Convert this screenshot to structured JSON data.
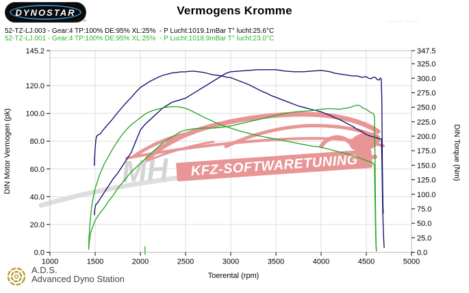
{
  "header": {
    "logo_text": "DYNOSTAR",
    "logo_subtext": "..:: m",
    "title": "Vermogens Kromme",
    "fine_print": "······· ·····",
    "runs": [
      {
        "label": "52-TZ-LJ.003 - Gear:4 TP:100% DE:95% XL:25%  - P Lucht:1019.1mBar T° lucht:25.6°C",
        "color": "#000000"
      },
      {
        "label": "52-TZ-LJ.001 - Gear:4 TP:100% DE:95% XL:25%  - P Lucht:1018.9mBar T° lucht:23.0°C",
        "color": "#2db32d"
      }
    ]
  },
  "watermark": {
    "mh_text": "MH",
    "banner_text": "KFZ-SOFTWARETUNING",
    "car_color": "#e89595",
    "gray_color": "#d6d6d6"
  },
  "footer": {
    "logo_title": "A.D.S.",
    "logo_subtitle": "Advanced Dyno Station"
  },
  "chart_data": {
    "type": "line",
    "title": "Vermogens Kromme",
    "xlabel": "Toerental (rpm)",
    "xlim": [
      1000,
      5000
    ],
    "x_ticks": [
      1000,
      1500,
      2000,
      2500,
      3000,
      3500,
      4000,
      4500,
      5000
    ],
    "grid": true,
    "y_left": {
      "label": "DIN Motor Vermogen (pk)",
      "max": 145.2,
      "ticks": [
        0,
        20,
        40,
        60,
        80,
        100,
        120,
        145.2
      ],
      "gridlines": [
        20,
        40,
        60,
        80,
        100,
        120,
        140
      ]
    },
    "y_right": {
      "label": "DIN Torque (Nm)",
      "max": 347.5,
      "ticks": [
        0,
        25,
        50,
        75,
        100,
        125,
        150,
        175,
        200,
        225,
        250,
        275,
        300,
        325,
        347.5
      ]
    },
    "series": [
      {
        "name": "power-52-TZ-LJ.003",
        "run": "52-TZ-LJ.003",
        "axis": "left",
        "unit": "pk",
        "color": "#14146e",
        "points": [
          [
            1490,
            27
          ],
          [
            1496,
            31
          ],
          [
            1505,
            34
          ],
          [
            1530,
            36
          ],
          [
            1560,
            39
          ],
          [
            1600,
            43
          ],
          [
            1650,
            48
          ],
          [
            1700,
            53
          ],
          [
            1750,
            57
          ],
          [
            1800,
            62
          ],
          [
            1850,
            67
          ],
          [
            1900,
            72
          ],
          [
            1950,
            80
          ],
          [
            2000,
            88
          ],
          [
            2050,
            92
          ],
          [
            2100,
            95
          ],
          [
            2150,
            98
          ],
          [
            2200,
            101
          ],
          [
            2250,
            104
          ],
          [
            2300,
            106
          ],
          [
            2350,
            108
          ],
          [
            2400,
            109
          ],
          [
            2450,
            110
          ],
          [
            2500,
            111
          ],
          [
            2550,
            113
          ],
          [
            2600,
            115
          ],
          [
            2650,
            117
          ],
          [
            2700,
            119
          ],
          [
            2750,
            121
          ],
          [
            2800,
            123
          ],
          [
            2850,
            125
          ],
          [
            2900,
            127
          ],
          [
            2950,
            129
          ],
          [
            3000,
            130
          ],
          [
            3100,
            130.5
          ],
          [
            3200,
            131
          ],
          [
            3300,
            131.5
          ],
          [
            3400,
            131.5
          ],
          [
            3500,
            131.5
          ],
          [
            3600,
            130.5
          ],
          [
            3700,
            130
          ],
          [
            3800,
            130
          ],
          [
            3900,
            130.5
          ],
          [
            4000,
            131
          ],
          [
            4100,
            130
          ],
          [
            4150,
            129
          ],
          [
            4200,
            128.5
          ],
          [
            4300,
            127.5
          ],
          [
            4350,
            127
          ],
          [
            4400,
            127
          ],
          [
            4450,
            126
          ],
          [
            4500,
            126.5
          ],
          [
            4520,
            125.5
          ],
          [
            4550,
            125
          ],
          [
            4580,
            126
          ],
          [
            4600,
            126
          ],
          [
            4620,
            124.5
          ],
          [
            4640,
            124
          ],
          [
            4655,
            125.5
          ],
          [
            4665,
            125
          ],
          [
            4672,
            110
          ],
          [
            4678,
            62
          ],
          [
            4684,
            34
          ],
          [
            4688,
            28
          ]
        ]
      },
      {
        "name": "torque-52-TZ-LJ.003",
        "run": "52-TZ-LJ.003",
        "axis": "right",
        "unit": "Nm",
        "color": "#14146e",
        "points": [
          [
            1490,
            150
          ],
          [
            1494,
            163
          ],
          [
            1500,
            180
          ],
          [
            1508,
            194
          ],
          [
            1516,
            200
          ],
          [
            1530,
            202
          ],
          [
            1555,
            204
          ],
          [
            1600,
            213
          ],
          [
            1650,
            222
          ],
          [
            1700,
            231
          ],
          [
            1750,
            241
          ],
          [
            1800,
            250
          ],
          [
            1850,
            259
          ],
          [
            1900,
            267
          ],
          [
            1950,
            276
          ],
          [
            2000,
            284
          ],
          [
            2050,
            289
          ],
          [
            2100,
            294
          ],
          [
            2150,
            298
          ],
          [
            2200,
            302
          ],
          [
            2250,
            305
          ],
          [
            2300,
            307
          ],
          [
            2350,
            309
          ],
          [
            2400,
            310
          ],
          [
            2450,
            311
          ],
          [
            2500,
            311
          ],
          [
            2550,
            312
          ],
          [
            2600,
            312
          ],
          [
            2650,
            311
          ],
          [
            2700,
            310
          ],
          [
            2750,
            308
          ],
          [
            2800,
            306
          ],
          [
            2850,
            305
          ],
          [
            2900,
            304
          ],
          [
            2950,
            302
          ],
          [
            3000,
            301
          ],
          [
            3050,
            298
          ],
          [
            3100,
            295
          ],
          [
            3150,
            292
          ],
          [
            3200,
            289
          ],
          [
            3250,
            285
          ],
          [
            3300,
            281
          ],
          [
            3350,
            277
          ],
          [
            3400,
            274
          ],
          [
            3450,
            270
          ],
          [
            3500,
            267
          ],
          [
            3550,
            264
          ],
          [
            3600,
            261
          ],
          [
            3650,
            258
          ],
          [
            3700,
            255
          ],
          [
            3750,
            252
          ],
          [
            3800,
            250
          ],
          [
            3850,
            248
          ],
          [
            3900,
            246
          ],
          [
            3950,
            244
          ],
          [
            4000,
            242
          ],
          [
            4050,
            239
          ],
          [
            4100,
            236
          ],
          [
            4150,
            232
          ],
          [
            4200,
            229
          ],
          [
            4250,
            225
          ],
          [
            4300,
            221
          ],
          [
            4350,
            217
          ],
          [
            4400,
            212
          ],
          [
            4450,
            208
          ],
          [
            4500,
            203
          ],
          [
            4550,
            200
          ],
          [
            4600,
            198
          ],
          [
            4640,
            196
          ],
          [
            4668,
            195
          ],
          [
            4674,
            145
          ],
          [
            4681,
            75
          ],
          [
            4690,
            30
          ],
          [
            4698,
            8
          ]
        ]
      },
      {
        "name": "power-52-TZ-LJ.001",
        "run": "52-TZ-LJ.001",
        "axis": "left",
        "unit": "pk",
        "color": "#2aa82a",
        "points": [
          [
            1428,
            2
          ],
          [
            1433,
            6
          ],
          [
            1440,
            10
          ],
          [
            1450,
            14
          ],
          [
            1465,
            17
          ],
          [
            1500,
            23
          ],
          [
            1550,
            28
          ],
          [
            1600,
            32
          ],
          [
            1650,
            37
          ],
          [
            1700,
            41
          ],
          [
            1750,
            46
          ],
          [
            1800,
            50
          ],
          [
            1850,
            54
          ],
          [
            1900,
            58
          ],
          [
            1950,
            61
          ],
          [
            2000,
            64
          ],
          [
            2050,
            67
          ],
          [
            2100,
            70
          ],
          [
            2150,
            73
          ],
          [
            2200,
            76
          ],
          [
            2250,
            79
          ],
          [
            2300,
            81
          ],
          [
            2350,
            83
          ],
          [
            2400,
            85
          ],
          [
            2450,
            87
          ],
          [
            2500,
            88
          ],
          [
            2600,
            89
          ],
          [
            2700,
            89.5
          ],
          [
            2800,
            89.5
          ],
          [
            2900,
            90
          ],
          [
            3000,
            91
          ],
          [
            3100,
            92.5
          ],
          [
            3200,
            94
          ],
          [
            3300,
            95.5
          ],
          [
            3400,
            97
          ],
          [
            3500,
            98.5
          ],
          [
            3600,
            100
          ],
          [
            3700,
            101
          ],
          [
            3800,
            101.5
          ],
          [
            3900,
            102
          ],
          [
            4000,
            103
          ],
          [
            4100,
            103.5
          ],
          [
            4200,
            103
          ],
          [
            4300,
            104
          ],
          [
            4350,
            105
          ],
          [
            4400,
            106
          ],
          [
            4430,
            105.5
          ],
          [
            4460,
            104
          ],
          [
            4500,
            103
          ],
          [
            4540,
            101
          ],
          [
            4575,
            100
          ],
          [
            4590,
            98
          ],
          [
            4597,
            65
          ],
          [
            4603,
            25
          ],
          [
            4608,
            6
          ],
          [
            4612,
            1
          ]
        ]
      },
      {
        "name": "torque-52-TZ-LJ.001",
        "run": "52-TZ-LJ.001",
        "axis": "right",
        "unit": "Nm",
        "color": "#2aa82a",
        "points": [
          [
            1428,
            8
          ],
          [
            1432,
            25
          ],
          [
            1440,
            45
          ],
          [
            1450,
            62
          ],
          [
            1468,
            86
          ],
          [
            1500,
            110
          ],
          [
            1550,
            134
          ],
          [
            1600,
            152
          ],
          [
            1650,
            166
          ],
          [
            1700,
            180
          ],
          [
            1750,
            192
          ],
          [
            1800,
            203
          ],
          [
            1850,
            212
          ],
          [
            1900,
            220
          ],
          [
            1950,
            226
          ],
          [
            2000,
            232
          ],
          [
            2050,
            238
          ],
          [
            2100,
            242
          ],
          [
            2150,
            245
          ],
          [
            2200,
            247
          ],
          [
            2250,
            249
          ],
          [
            2300,
            250
          ],
          [
            2350,
            251
          ],
          [
            2400,
            251
          ],
          [
            2450,
            250
          ],
          [
            2500,
            248
          ],
          [
            2550,
            245
          ],
          [
            2600,
            241
          ],
          [
            2700,
            233
          ],
          [
            2800,
            226
          ],
          [
            2900,
            219
          ],
          [
            3000,
            214
          ],
          [
            3100,
            209
          ],
          [
            3200,
            205
          ],
          [
            3300,
            201
          ],
          [
            3400,
            198
          ],
          [
            3500,
            195
          ],
          [
            3600,
            192
          ],
          [
            3700,
            189
          ],
          [
            3800,
            186
          ],
          [
            3900,
            183
          ],
          [
            4000,
            181
          ],
          [
            4100,
            177
          ],
          [
            4200,
            173
          ],
          [
            4300,
            169
          ],
          [
            4400,
            164
          ],
          [
            4450,
            161
          ],
          [
            4500,
            158
          ],
          [
            4540,
            156
          ],
          [
            4575,
            154
          ],
          [
            4590,
            150
          ],
          [
            4597,
            88
          ],
          [
            4603,
            32
          ],
          [
            4608,
            8
          ],
          [
            4612,
            2
          ]
        ]
      },
      {
        "name": "run-start-marker",
        "run": "52-TZ-LJ.001",
        "axis": "left",
        "unit": "pk",
        "color": "#2aa82a",
        "points": [
          [
            2052,
            -1.5
          ],
          [
            2052,
            4
          ]
        ]
      }
    ]
  }
}
